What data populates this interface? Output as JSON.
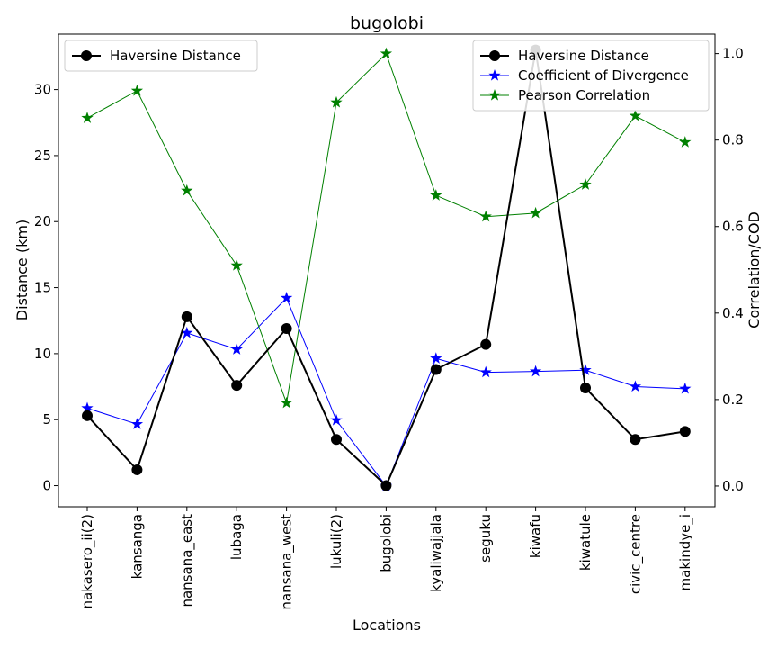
{
  "chart_data": {
    "type": "line",
    "title": "bugolobi",
    "xlabel": "Locations",
    "ylabel": "Distance (km)",
    "ylabel_right": "Correlation/COD",
    "categories": [
      "nakasero_ii(2)",
      "kansanga",
      "nansana_east",
      "lubaga",
      "nansana_west",
      "lukuli(2)",
      "bugolobi",
      "kyaliwajjala",
      "seguku",
      "kiwafu",
      "kiwatule",
      "civic_centre",
      "makindye_i"
    ],
    "ylim": [
      -1.6,
      34.2
    ],
    "ylim_right": [
      -0.048,
      1.045
    ],
    "yticks": [
      0,
      5,
      10,
      15,
      20,
      25,
      30
    ],
    "yticks_right": [
      0.0,
      0.2,
      0.4,
      0.6,
      0.8,
      1.0
    ],
    "grid": false,
    "legend_left": {
      "position": "top-left",
      "entries": [
        "Haversine Distance"
      ]
    },
    "legend_right": {
      "position": "top-right",
      "entries": [
        "Haversine Distance",
        "Coefficient of Divergence",
        "Pearson Correlation"
      ]
    },
    "series": [
      {
        "name": "Haversine Distance",
        "axis": "left",
        "color": "#000000",
        "marker": "circle",
        "values": [
          5.3,
          1.2,
          12.8,
          7.6,
          11.9,
          3.5,
          0.0,
          8.8,
          10.7,
          33.0,
          7.4,
          3.5,
          4.1
        ]
      },
      {
        "name": "Coefficient of Divergence",
        "axis": "right",
        "color": "#0000ff",
        "marker": "star",
        "values": [
          0.18,
          0.143,
          0.354,
          0.316,
          0.435,
          0.152,
          0.0,
          0.295,
          0.263,
          0.265,
          0.268,
          0.23,
          0.225
        ]
      },
      {
        "name": "Pearson Correlation",
        "axis": "right",
        "color": "#008000",
        "marker": "star",
        "values": [
          0.851,
          0.914,
          0.683,
          0.51,
          0.192,
          0.887,
          1.0,
          0.672,
          0.623,
          0.631,
          0.697,
          0.856,
          0.795
        ]
      }
    ]
  }
}
